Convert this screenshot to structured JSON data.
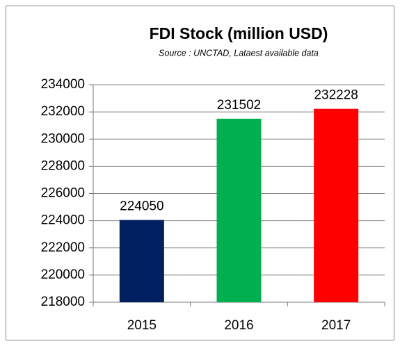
{
  "chart_data": {
    "type": "bar",
    "title": "FDI Stock (million USD)",
    "subtitle": "Source : UNCTAD, Lataest available data",
    "categories": [
      "2015",
      "2016",
      "2017"
    ],
    "values": [
      224050,
      231502,
      232228
    ],
    "colors": [
      "#002060",
      "#00b050",
      "#ff0000"
    ],
    "ylim": [
      218000,
      234000
    ],
    "yticks": [
      218000,
      220000,
      222000,
      224000,
      226000,
      228000,
      230000,
      232000,
      234000
    ],
    "grid": true
  }
}
